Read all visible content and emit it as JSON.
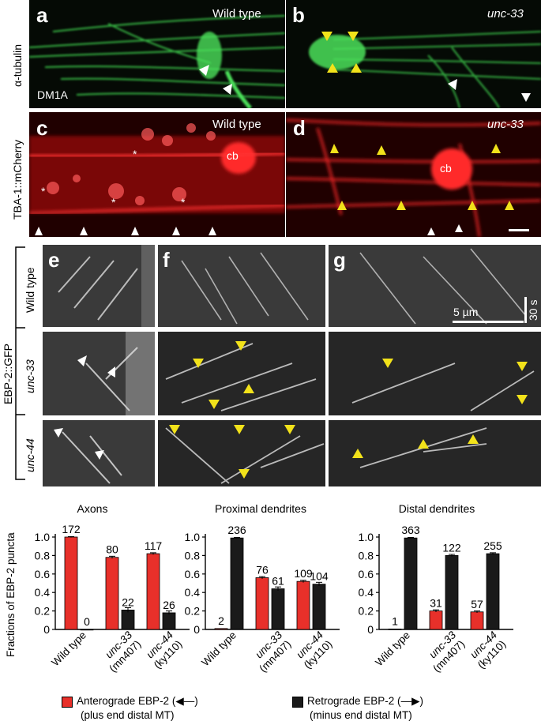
{
  "figure": {
    "panels": {
      "a": {
        "letter": "a",
        "title": "Wild type",
        "stain": "DM1A"
      },
      "b": {
        "letter": "b",
        "title": "unc-33"
      },
      "c": {
        "letter": "c",
        "title": "Wild type",
        "cell_body": "cb",
        "asterisk": "*"
      },
      "d": {
        "letter": "d",
        "title": "unc-33",
        "cell_body": "cb"
      },
      "e": {
        "letter": "e"
      },
      "f": {
        "letter": "f"
      },
      "g": {
        "letter": "g"
      }
    },
    "row_labels": {
      "tubulin": "α-tubulin",
      "tba": "TBA-1::mCherry",
      "ebp": "EBP-2::GFP",
      "wild_type": "Wild type",
      "unc33": "unc-33",
      "unc44": "unc-44"
    },
    "scale": {
      "space": "5 µm",
      "time": "30 s"
    },
    "legend": {
      "antero_line1": "Anterograde EBP-2 (",
      "antero_arrow": "◀—",
      "antero_close": ")",
      "antero_line2": "(plus end distal MT)",
      "retro_line1": "Retrograde EBP-2 (",
      "retro_arrow": "—▶",
      "retro_close": ")",
      "retro_line2": "(minus end distal MT)",
      "antero_color": "#e8302a",
      "retro_color": "#1a1a1a"
    }
  },
  "chart_data": [
    {
      "type": "bar",
      "title": "Axons",
      "ylabel": "Fractions of EBP-2 puncta",
      "ylim": [
        0,
        1.0
      ],
      "yticks": [
        "0",
        "0.2",
        "0.4",
        "0.6",
        "0.8",
        "1.0"
      ],
      "categories": [
        [
          "Wild type"
        ],
        [
          "unc-33",
          "(mn407)"
        ],
        [
          "unc-44",
          "(ky110)"
        ]
      ],
      "series": [
        {
          "name": "Anterograde EBP-2",
          "color": "#e8302a",
          "values": [
            1.0,
            0.78,
            0.82
          ],
          "labels": [
            "172",
            "80",
            "117"
          ],
          "err": [
            0.005,
            0.012,
            0.01
          ]
        },
        {
          "name": "Retrograde EBP-2",
          "color": "#1a1a1a",
          "values": [
            0.0,
            0.21,
            0.18
          ],
          "labels": [
            "0",
            "22",
            "26"
          ],
          "err": [
            0,
            0.025,
            0.02
          ]
        }
      ]
    },
    {
      "type": "bar",
      "title": "Proximal dendrites",
      "ylim": [
        0,
        1.0
      ],
      "yticks": [
        "0",
        "0.2",
        "0.4",
        "0.6",
        "0.8",
        "1.0"
      ],
      "categories": [
        [
          "Wild type"
        ],
        [
          "unc-33",
          "(mn407)"
        ],
        [
          "unc-44",
          "(ky110)"
        ]
      ],
      "series": [
        {
          "name": "Anterograde EBP-2",
          "color": "#e8302a",
          "values": [
            0.01,
            0.56,
            0.52
          ],
          "labels": [
            "2",
            "76",
            "109"
          ],
          "err": [
            0,
            0.012,
            0.012
          ]
        },
        {
          "name": "Retrograde EBP-2",
          "color": "#1a1a1a",
          "values": [
            0.99,
            0.44,
            0.49
          ],
          "labels": [
            "236",
            "61",
            "104"
          ],
          "err": [
            0.006,
            0.02,
            0.02
          ]
        }
      ]
    },
    {
      "type": "bar",
      "title": "Distal dendrites",
      "ylim": [
        0,
        1.0
      ],
      "yticks": [
        "0",
        "0.2",
        "0.4",
        "0.6",
        "0.8",
        "1.0"
      ],
      "categories": [
        [
          "Wild type"
        ],
        [
          "unc-33",
          "(mn407)"
        ],
        [
          "unc-44",
          "(ky110)"
        ]
      ],
      "series": [
        {
          "name": "Anterograde EBP-2",
          "color": "#e8302a",
          "values": [
            0.005,
            0.2,
            0.19
          ],
          "labels": [
            "1",
            "31",
            "57"
          ],
          "err": [
            0,
            0.012,
            0.01
          ]
        },
        {
          "name": "Retrograde EBP-2",
          "color": "#1a1a1a",
          "values": [
            0.99,
            0.8,
            0.82
          ],
          "labels": [
            "363",
            "122",
            "255"
          ],
          "err": [
            0.006,
            0.012,
            0.01
          ]
        }
      ]
    }
  ]
}
